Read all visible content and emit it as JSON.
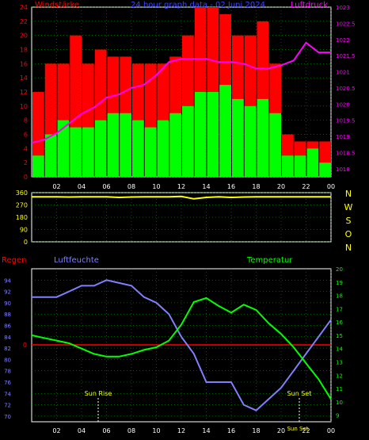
{
  "header": {
    "left_title": "Windstärke",
    "center_title": "24 hour graph data - 02 Juni 2024",
    "right_title": "Luftdruck"
  },
  "lower_header": {
    "rain_label": "Regen",
    "humidity_label": "Luftfeuchte",
    "temperature_label": "Temperatur",
    "rain_zero_label": "0"
  },
  "annotations": {
    "sunrise": "Sun Rise",
    "sunset": "Sun Set",
    "sunset_alt": "Sun Set"
  },
  "wind_dir_letters": [
    "N",
    "W",
    "S",
    "O",
    "N"
  ],
  "colors": {
    "wind_avg": "#00ff00",
    "wind_gust": "#ff0000",
    "pressure": "#ff00ff",
    "direction": "#ffff00",
    "humidity": "#8080ff",
    "temperature": "#00ff00",
    "rain": "#ff0000",
    "grid": "#00aa00",
    "axis": "#ffffff"
  },
  "chart_data": [
    {
      "type": "bar",
      "title": "24 hour graph data - 02 Juni 2024",
      "ylabel": "Windstärke",
      "y2label": "Luftdruck",
      "ylim": [
        0,
        24
      ],
      "y_ticks": [
        0,
        2,
        4,
        6,
        8,
        10,
        12,
        14,
        16,
        18,
        20,
        22,
        24
      ],
      "y2lim": [
        1017.75,
        1023
      ],
      "y2_ticks": [
        1018,
        1018.5,
        1019,
        1019.5,
        1020,
        1020.5,
        1021,
        1021.5,
        1022,
        1022.5,
        1023
      ],
      "x_ticks": [
        "02",
        "04",
        "06",
        "08",
        "10",
        "12",
        "14",
        "16",
        "18",
        "20",
        "22",
        "00"
      ],
      "grid": true,
      "x": [
        0,
        1,
        2,
        3,
        4,
        5,
        6,
        7,
        8,
        9,
        10,
        11,
        12,
        13,
        14,
        15,
        16,
        17,
        18,
        19,
        20,
        21,
        22,
        23,
        24
      ],
      "series": [
        {
          "name": "Windstärke",
          "kind": "bar",
          "values": [
            3,
            6,
            8,
            7,
            7,
            8,
            9,
            9,
            8,
            7,
            8,
            9,
            10,
            12,
            12,
            13,
            11,
            10,
            11,
            9,
            3,
            3,
            4,
            2,
            0
          ]
        },
        {
          "kind": "bar",
          "values": [
            12,
            16,
            16,
            20,
            16,
            18,
            17,
            17,
            16,
            16,
            16,
            17,
            20,
            24,
            24,
            23,
            20,
            20,
            22,
            16,
            6,
            5,
            5,
            5,
            0
          ]
        },
        {
          "name": "Luftdruck",
          "kind": "line",
          "axis": "right",
          "values": [
            1018.8,
            1018.9,
            1019.1,
            1019.4,
            1019.7,
            1019.9,
            1020.2,
            1020.3,
            1020.5,
            1020.6,
            1020.9,
            1021.3,
            1021.4,
            1021.4,
            1021.4,
            1021.3,
            1021.3,
            1021.25,
            1021.1,
            1021.1,
            1021.2,
            1021.35,
            1021.9,
            1021.6,
            1021.6
          ]
        }
      ]
    },
    {
      "type": "line",
      "ylim": [
        0,
        360
      ],
      "y_ticks": [
        0,
        90,
        180,
        270,
        360
      ],
      "x": [
        0,
        1,
        2,
        3,
        4,
        5,
        6,
        7,
        8,
        9,
        10,
        11,
        12,
        13,
        14,
        15,
        16,
        17,
        18,
        19,
        20,
        21,
        22,
        23,
        24
      ],
      "series": [
        {
          "name": "direction",
          "values": [
            330,
            330,
            330,
            328,
            330,
            330,
            330,
            325,
            328,
            330,
            330,
            330,
            332,
            315,
            325,
            330,
            325,
            328,
            330,
            330,
            330,
            330,
            330,
            330,
            330
          ]
        }
      ]
    },
    {
      "type": "line",
      "ylabel": "Luftfeuchte",
      "y2label": "Temperatur",
      "ylim": [
        69,
        96
      ],
      "y_ticks": [
        70,
        72,
        74,
        76,
        78,
        80,
        82,
        84,
        86,
        88,
        90,
        92,
        94
      ],
      "y2lim": [
        8.5,
        20
      ],
      "y2_ticks": [
        9,
        10,
        11,
        12,
        13,
        14,
        15,
        16,
        17,
        18,
        19,
        20
      ],
      "x_ticks": [
        "02",
        "04",
        "06",
        "08",
        "10",
        "12",
        "14",
        "16",
        "18",
        "20",
        "22",
        "00"
      ],
      "grid": true,
      "x": [
        0,
        1,
        2,
        3,
        4,
        5,
        6,
        7,
        8,
        9,
        10,
        11,
        12,
        13,
        14,
        15,
        16,
        17,
        18,
        19,
        20,
        21,
        22,
        23,
        24
      ],
      "series": [
        {
          "name": "Luftfeuchte",
          "values": [
            91,
            91,
            91,
            92,
            93,
            93,
            94,
            93.5,
            93,
            91,
            90,
            88,
            84,
            81,
            76,
            76,
            76,
            72,
            71,
            73,
            75,
            78,
            81,
            84,
            87
          ]
        },
        {
          "name": "Temperatur",
          "axis": "right",
          "values": [
            15.0,
            14.8,
            14.6,
            14.4,
            14.0,
            13.6,
            13.4,
            13.4,
            13.6,
            13.9,
            14.1,
            14.6,
            15.8,
            17.5,
            17.8,
            17.2,
            16.7,
            17.3,
            16.9,
            15.9,
            15.1,
            14.1,
            12.9,
            11.7,
            10.2
          ]
        }
      ]
    }
  ]
}
